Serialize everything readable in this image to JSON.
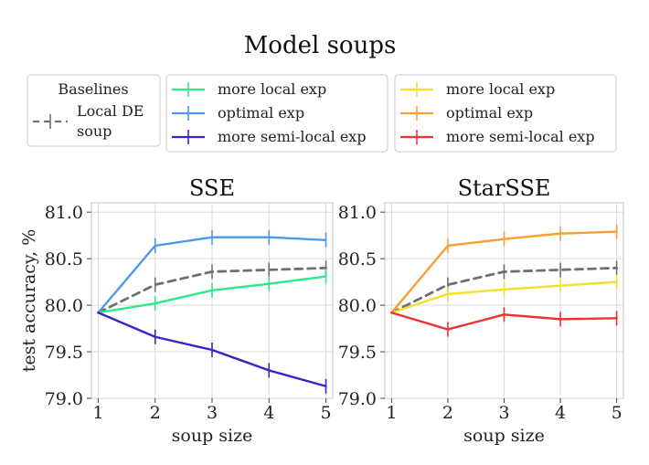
{
  "title": "Model soups",
  "legend": {
    "baselines": {
      "heading": "Baselines",
      "entry_line1": "Local DE",
      "entry_line2": "soup",
      "color": "#707070"
    },
    "group1": [
      {
        "label": "more local exp",
        "color": "#2ee88c"
      },
      {
        "label": "optimal exp",
        "color": "#4f98ec"
      },
      {
        "label": "more semi-local exp",
        "color": "#3526c8"
      }
    ],
    "group2": [
      {
        "label": "more local exp",
        "color": "#f4df2a"
      },
      {
        "label": "optimal exp",
        "color": "#f5a031"
      },
      {
        "label": "more semi-local exp",
        "color": "#ee3232"
      }
    ]
  },
  "chart_data": [
    {
      "type": "line",
      "title": "SSE",
      "xlabel": "soup size",
      "ylabel": "test accuracy, %",
      "x": [
        1,
        2,
        3,
        4,
        5
      ],
      "xticks": [
        "1",
        "2",
        "3",
        "4",
        "5"
      ],
      "yticks": [
        "79.0",
        "79.5",
        "80.0",
        "80.5",
        "81.0"
      ],
      "xlim": [
        0.88,
        5.12
      ],
      "ylim": [
        79.0,
        81.1
      ],
      "grid": true,
      "series": [
        {
          "name": "Local DE soup",
          "color": "#707070",
          "dashed": true,
          "values": [
            79.92,
            80.22,
            80.36,
            80.38,
            80.4
          ]
        },
        {
          "name": "more local exp",
          "color": "#2ee88c",
          "values": [
            79.92,
            80.02,
            80.16,
            80.23,
            80.31
          ]
        },
        {
          "name": "optimal exp",
          "color": "#4f98ec",
          "values": [
            79.92,
            80.64,
            80.73,
            80.73,
            80.7
          ]
        },
        {
          "name": "more semi-local exp",
          "color": "#3526c8",
          "values": [
            79.92,
            79.66,
            79.52,
            79.3,
            79.13
          ]
        }
      ]
    },
    {
      "type": "line",
      "title": "StarSSE",
      "xlabel": "soup size",
      "ylabel": "",
      "x": [
        1,
        2,
        3,
        4,
        5
      ],
      "xticks": [
        "1",
        "2",
        "3",
        "4",
        "5"
      ],
      "yticks": [
        "79.0",
        "79.5",
        "80.0",
        "80.5",
        "81.0"
      ],
      "xlim": [
        0.88,
        5.12
      ],
      "ylim": [
        79.0,
        81.1
      ],
      "grid": true,
      "series": [
        {
          "name": "Local DE soup",
          "color": "#707070",
          "dashed": true,
          "values": [
            79.92,
            80.22,
            80.36,
            80.38,
            80.4
          ]
        },
        {
          "name": "more local exp",
          "color": "#f4df2a",
          "values": [
            79.92,
            80.12,
            80.17,
            80.21,
            80.25
          ]
        },
        {
          "name": "optimal exp",
          "color": "#f5a031",
          "values": [
            79.92,
            80.64,
            80.71,
            80.77,
            80.79
          ]
        },
        {
          "name": "more semi-local exp",
          "color": "#ee3232",
          "values": [
            79.92,
            79.74,
            79.9,
            79.85,
            79.86
          ]
        }
      ]
    }
  ]
}
